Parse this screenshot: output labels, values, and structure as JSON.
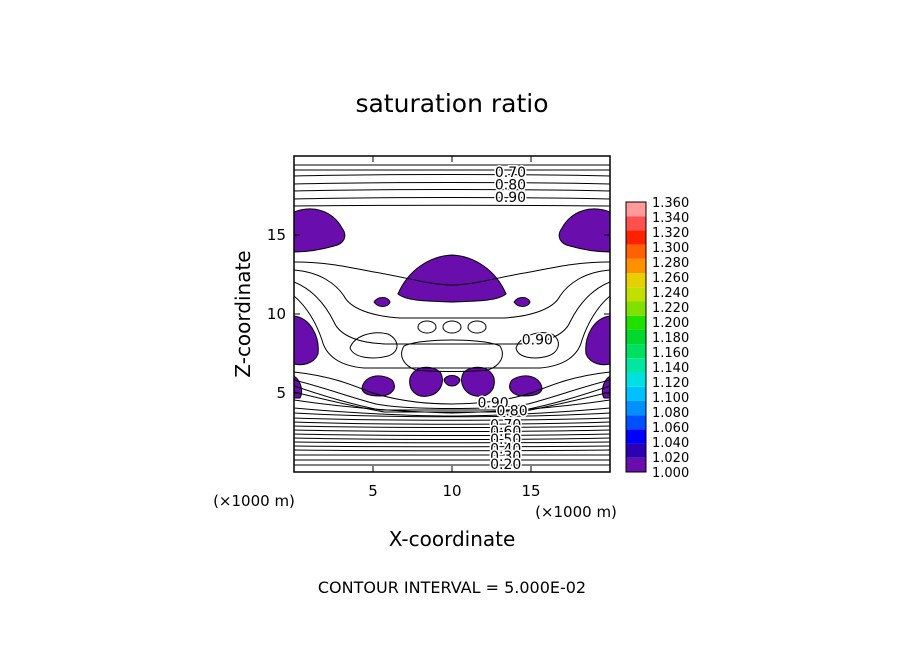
{
  "chart_data": {
    "type": "contour",
    "title": "saturation ratio",
    "xlabel": "X-coordinate",
    "ylabel": "Z-coordinate",
    "x_unit": "(×1000 m)",
    "z_unit": "(×1000 m)",
    "xlim": [
      0,
      20
    ],
    "ylim": [
      0,
      20
    ],
    "x_ticks": [
      5,
      10,
      15
    ],
    "y_ticks": [
      5,
      10,
      15
    ],
    "footer": "CONTOUR INTERVAL = 5.000E-02",
    "colorbar": {
      "levels": [
        "1.000",
        "1.020",
        "1.040",
        "1.060",
        "1.080",
        "1.100",
        "1.120",
        "1.140",
        "1.160",
        "1.180",
        "1.200",
        "1.220",
        "1.240",
        "1.260",
        "1.280",
        "1.300",
        "1.320",
        "1.340",
        "1.360"
      ],
      "colors": [
        "#6a0dad",
        "#2a00b0",
        "#0000ff",
        "#0050ff",
        "#0090ff",
        "#00c0ff",
        "#00e0e0",
        "#00e8a0",
        "#00e060",
        "#00d830",
        "#20e000",
        "#80e000",
        "#c0e000",
        "#e8d000",
        "#ff9000",
        "#ff6000",
        "#ff2000",
        "#ff5050",
        "#ff9a9a"
      ]
    },
    "contour_labels": [
      {
        "text": "0.70",
        "x": 13.7,
        "z": 19.0
      },
      {
        "text": "0.80",
        "x": 13.7,
        "z": 18.2
      },
      {
        "text": "0.90",
        "x": 13.7,
        "z": 17.4
      },
      {
        "text": "0.90",
        "x": 15.4,
        "z": 8.4
      },
      {
        "text": "0.90",
        "x": 12.6,
        "z": 4.4
      },
      {
        "text": "0.80",
        "x": 13.8,
        "z": 3.9
      },
      {
        "text": "0.70",
        "x": 13.4,
        "z": 3.0
      },
      {
        "text": "0.60",
        "x": 13.4,
        "z": 2.6
      },
      {
        "text": "0.50",
        "x": 13.4,
        "z": 2.1
      },
      {
        "text": "0.40",
        "x": 13.4,
        "z": 1.5
      },
      {
        "text": "0.30",
        "x": 13.4,
        "z": 1.0
      },
      {
        "text": "0.20",
        "x": 13.4,
        "z": 0.5
      }
    ],
    "supersaturated_regions_color": "#6a0dad"
  }
}
